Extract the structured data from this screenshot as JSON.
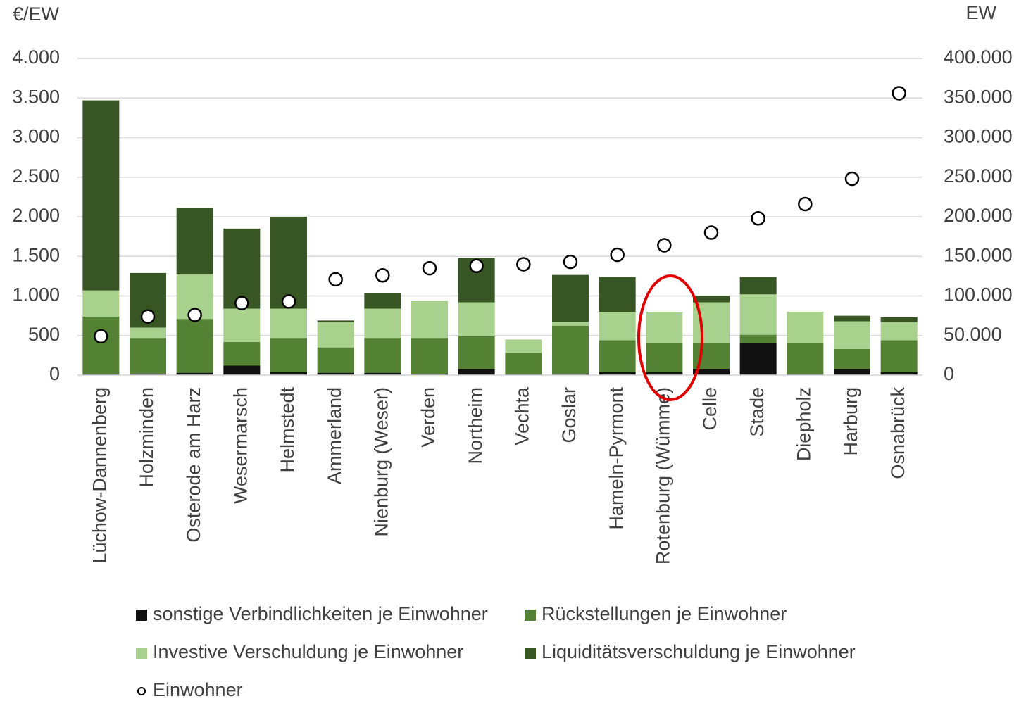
{
  "chart_data": {
    "type": "bar",
    "stacked": true,
    "ylabel": "€/EW",
    "y2label": "EW",
    "categories": [
      "Lüchow-Dannenberg",
      "Holzminden",
      "Osterode am Harz",
      "Wesermarsch",
      "Helmstedt",
      "Ammerland",
      "Nienburg (Weser)",
      "Verden",
      "Northeim",
      "Vechta",
      "Goslar",
      "Hameln-Pyrmont",
      "Rotenburg (Wümme)",
      "Celle",
      "Stade",
      "Diepholz",
      "Harburg",
      "Osnabrück"
    ],
    "series": [
      {
        "name": "sonstige Verbindlichkeiten je Einwohner",
        "color": "#111111",
        "values": [
          10,
          20,
          30,
          120,
          40,
          30,
          30,
          15,
          80,
          10,
          15,
          40,
          40,
          80,
          400,
          10,
          80,
          40
        ]
      },
      {
        "name": "Rückstellungen je Einwohner",
        "color": "#548235",
        "values": [
          730,
          450,
          680,
          300,
          430,
          320,
          440,
          455,
          410,
          270,
          610,
          400,
          360,
          320,
          110,
          390,
          250,
          400
        ]
      },
      {
        "name": "Investive Verschuldung je Einwohner",
        "color": "#a9d18e",
        "values": [
          330,
          130,
          560,
          420,
          370,
          320,
          370,
          470,
          430,
          170,
          50,
          360,
          400,
          520,
          510,
          400,
          350,
          230
        ]
      },
      {
        "name": "Liquiditätsverschuldung je Einwohner",
        "color": "#375623",
        "values": [
          2400,
          690,
          840,
          1010,
          1160,
          20,
          200,
          0,
          560,
          0,
          590,
          440,
          0,
          80,
          220,
          0,
          70,
          60
        ]
      },
      {
        "name": "Einwohner",
        "type": "scatter",
        "axis": "y2",
        "color": "#ffffff",
        "edgecolor": "#000000",
        "values": [
          49000,
          74000,
          76000,
          91000,
          93000,
          121000,
          126000,
          135000,
          138000,
          140000,
          143000,
          152000,
          164000,
          180000,
          198000,
          216000,
          248000,
          356000
        ]
      }
    ],
    "ylim": [
      0,
      4000
    ],
    "yticks": [
      0,
      500,
      {
        "value": 1000,
        "label": "1.000"
      },
      {
        "value": 1500,
        "label": "1.500"
      },
      {
        "value": 2000,
        "label": "2.000"
      },
      {
        "value": 2500,
        "label": "2.500"
      },
      {
        "value": 3000,
        "label": "3.000"
      },
      {
        "value": 3500,
        "label": "3.500"
      },
      {
        "value": 4000,
        "label": "4.000"
      }
    ],
    "y2lim": [
      0,
      400000
    ],
    "y2ticks": [
      0,
      {
        "value": 50000,
        "label": "50.000"
      },
      {
        "value": 100000,
        "label": "100.000"
      },
      {
        "value": 150000,
        "label": "150.000"
      },
      {
        "value": 200000,
        "label": "200.000"
      },
      {
        "value": 250000,
        "label": "250.000"
      },
      {
        "value": 300000,
        "label": "300.000"
      },
      {
        "value": 350000,
        "label": "350.000"
      },
      {
        "value": 400000,
        "label": "400.000"
      }
    ],
    "grid": true,
    "legend": "bottom"
  }
}
